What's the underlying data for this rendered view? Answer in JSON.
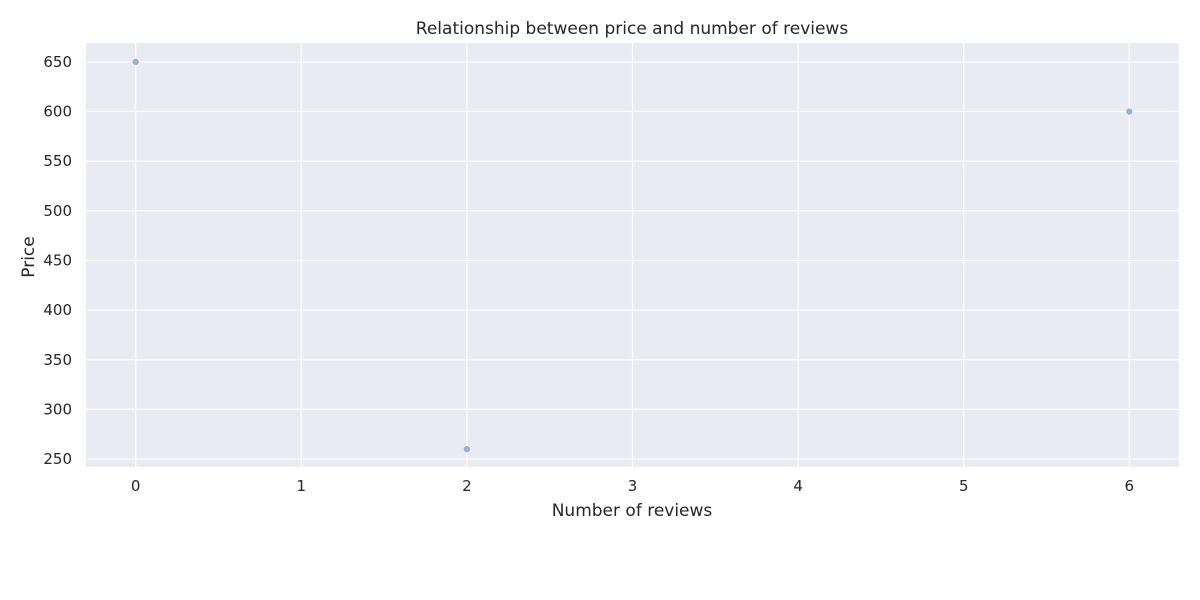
{
  "chart_data": {
    "type": "scatter",
    "title": "Relationship between price and number of reviews",
    "xlabel": "Number of reviews",
    "ylabel": "Price",
    "x": [
      0,
      2,
      6
    ],
    "y": [
      650,
      260,
      600
    ],
    "xlim": [
      -0.3,
      6.3
    ],
    "ylim": [
      242,
      669
    ],
    "xticks": [
      0,
      1,
      2,
      3,
      4,
      5,
      6
    ],
    "yticks": [
      250,
      300,
      350,
      400,
      450,
      500,
      550,
      600,
      650
    ],
    "grid": true,
    "colors": {
      "background": "#EAEAF2",
      "grid": "#FFFFFF",
      "marker": "#9FB0D6"
    }
  }
}
